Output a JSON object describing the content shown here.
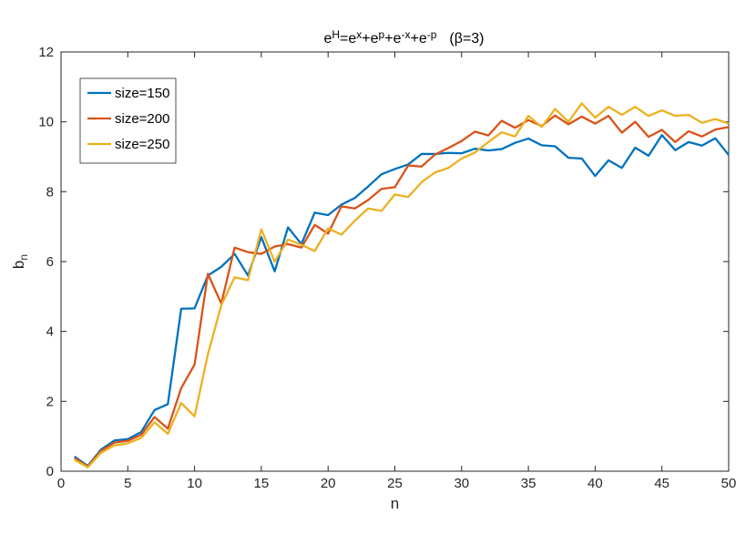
{
  "chart_data": {
    "type": "line",
    "title": {
      "base": "e",
      "parts": [
        {
          "text": "H",
          "sup": true
        },
        {
          "text": "=e",
          "sup": false
        },
        {
          "text": "x",
          "sup": true
        },
        {
          "text": "+e",
          "sup": false
        },
        {
          "text": "p",
          "sup": true
        },
        {
          "text": "+e",
          "sup": false
        },
        {
          "text": "-x",
          "sup": true
        },
        {
          "text": "+e",
          "sup": false
        },
        {
          "text": "-p",
          "sup": true
        }
      ],
      "annotation": "(β=3)"
    },
    "xlabel": "n",
    "ylabel": {
      "base": "b",
      "sub": "n"
    },
    "xlim": [
      0,
      50
    ],
    "ylim": [
      0,
      12
    ],
    "xticks": [
      0,
      5,
      10,
      15,
      20,
      25,
      30,
      35,
      40,
      45,
      50
    ],
    "yticks": [
      0,
      2,
      4,
      6,
      8,
      10,
      12
    ],
    "grid": false,
    "legend_position": "top-left",
    "x": [
      1,
      2,
      3,
      4,
      5,
      6,
      7,
      8,
      9,
      10,
      11,
      12,
      13,
      14,
      15,
      16,
      17,
      18,
      19,
      20,
      21,
      22,
      23,
      24,
      25,
      26,
      27,
      28,
      29,
      30,
      31,
      32,
      33,
      34,
      35,
      36,
      37,
      38,
      39,
      40,
      41,
      42,
      43,
      44,
      45,
      46,
      47,
      48,
      49,
      50
    ],
    "series": [
      {
        "name": "size=150",
        "color": "#0072BD",
        "values": [
          0.42,
          0.15,
          0.62,
          0.88,
          0.92,
          1.12,
          1.75,
          1.92,
          4.65,
          4.66,
          5.6,
          5.85,
          6.22,
          5.6,
          6.7,
          5.72,
          6.98,
          6.5,
          7.4,
          7.33,
          7.63,
          7.82,
          8.15,
          8.5,
          8.65,
          8.78,
          9.08,
          9.08,
          9.11,
          9.1,
          9.23,
          9.18,
          9.22,
          9.4,
          9.52,
          9.33,
          9.3,
          8.97,
          8.95,
          8.45,
          8.9,
          8.68,
          9.26,
          9.03,
          9.62,
          9.19,
          9.42,
          9.32,
          9.53,
          9.05
        ]
      },
      {
        "name": "size=200",
        "color": "#D95319",
        "values": [
          0.38,
          0.13,
          0.58,
          0.82,
          0.87,
          1.04,
          1.55,
          1.22,
          2.38,
          3.05,
          5.65,
          4.8,
          6.4,
          6.27,
          6.22,
          6.43,
          6.5,
          6.4,
          7.05,
          6.8,
          7.58,
          7.52,
          7.76,
          8.08,
          8.13,
          8.75,
          8.72,
          9.06,
          9.25,
          9.45,
          9.72,
          9.61,
          10.03,
          9.83,
          10.05,
          9.88,
          10.18,
          9.93,
          10.15,
          9.95,
          10.17,
          9.69,
          10.0,
          9.57,
          9.77,
          9.42,
          9.73,
          9.58,
          9.78,
          9.85
        ]
      },
      {
        "name": "size=250",
        "color": "#EDB120",
        "values": [
          0.33,
          0.11,
          0.53,
          0.74,
          0.8,
          0.95,
          1.4,
          1.07,
          1.95,
          1.57,
          3.35,
          4.75,
          5.55,
          5.47,
          6.92,
          6.0,
          6.63,
          6.48,
          6.3,
          6.95,
          6.77,
          7.17,
          7.52,
          7.45,
          7.92,
          7.85,
          8.27,
          8.55,
          8.68,
          8.95,
          9.12,
          9.42,
          9.7,
          9.58,
          10.17,
          9.85,
          10.37,
          10.0,
          10.53,
          10.12,
          10.43,
          10.2,
          10.43,
          10.17,
          10.33,
          10.17,
          10.2,
          9.97,
          10.08,
          9.95
        ]
      }
    ]
  }
}
